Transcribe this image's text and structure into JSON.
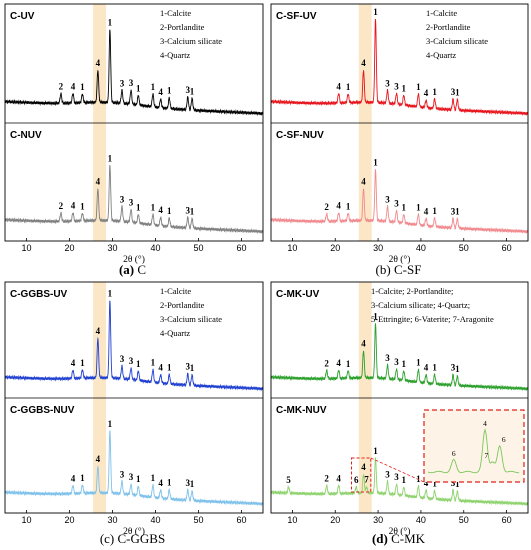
{
  "chart_data": [
    {
      "id": "a",
      "type": "line",
      "caption": {
        "letter": "(a)",
        "name": "C"
      },
      "xlim": [
        5,
        65
      ],
      "x_ticks": [
        10,
        20,
        30,
        40,
        50,
        60
      ],
      "xlabel": "2θ (°)",
      "highlight_band": [
        25.5,
        28.5
      ],
      "legend": [
        "1-Calcite",
        "2-Portlandite",
        "3-Calcium silicate",
        "4-Quartz"
      ],
      "series": [
        {
          "name": "C-UV",
          "color": "#000000",
          "peaks": [
            [
              18.0,
              2,
              9
            ],
            [
              20.8,
              4,
              9
            ],
            [
              23.0,
              1,
              8
            ],
            [
              26.6,
              4,
              30
            ],
            [
              29.4,
              1,
              68
            ],
            [
              32.2,
              3,
              12
            ],
            [
              34.3,
              3,
              13
            ],
            [
              36.0,
              1,
              9
            ],
            [
              39.4,
              1,
              12
            ],
            [
              41.2,
              4,
              8
            ],
            [
              43.2,
              1,
              10
            ],
            [
              47.5,
              3,
              12
            ],
            [
              48.5,
              1,
              11
            ]
          ]
        },
        {
          "name": "C-NUV",
          "color": "#808080",
          "peaks": [
            [
              18.0,
              2,
              8
            ],
            [
              20.8,
              4,
              8
            ],
            [
              23.0,
              1,
              7
            ],
            [
              26.6,
              4,
              30
            ],
            [
              29.4,
              1,
              52
            ],
            [
              32.2,
              3,
              14
            ],
            [
              34.3,
              3,
              12
            ],
            [
              36.0,
              1,
              8
            ],
            [
              39.4,
              1,
              10
            ],
            [
              41.2,
              4,
              8
            ],
            [
              43.2,
              1,
              8
            ],
            [
              47.5,
              3,
              10
            ],
            [
              48.5,
              1,
              9
            ]
          ]
        }
      ]
    },
    {
      "id": "b",
      "type": "line",
      "caption": {
        "letter": "(b)",
        "name": "C-SF"
      },
      "xlim": [
        5,
        65
      ],
      "x_ticks": [
        10,
        20,
        30,
        40,
        50,
        60
      ],
      "xlabel": "2θ (°)",
      "highlight_band": [
        25.5,
        28.5
      ],
      "legend": [
        "1-Calcite",
        "2-Portlandite",
        "3-Calcium silicate",
        "4-Quartz"
      ],
      "series": [
        {
          "name": "C-SF-UV",
          "color": "#e8141c",
          "peaks": [
            [
              20.8,
              4,
              9
            ],
            [
              23.0,
              1,
              8
            ],
            [
              26.6,
              4,
              30
            ],
            [
              29.4,
              1,
              78
            ],
            [
              32.2,
              3,
              12
            ],
            [
              34.3,
              3,
              10
            ],
            [
              36.0,
              1,
              9
            ],
            [
              39.4,
              1,
              12
            ],
            [
              41.2,
              4,
              7
            ],
            [
              43.2,
              1,
              9
            ],
            [
              47.5,
              3,
              10
            ],
            [
              48.5,
              1,
              10
            ]
          ]
        },
        {
          "name": "C-SF-NUV",
          "color": "#f08a8e",
          "peaks": [
            [
              18.0,
              2,
              7
            ],
            [
              20.8,
              4,
              8
            ],
            [
              23.0,
              1,
              7
            ],
            [
              26.6,
              4,
              30
            ],
            [
              29.4,
              1,
              48
            ],
            [
              32.2,
              3,
              14
            ],
            [
              34.3,
              3,
              11
            ],
            [
              36.0,
              1,
              8
            ],
            [
              39.4,
              1,
              10
            ],
            [
              41.2,
              4,
              7
            ],
            [
              43.2,
              1,
              8
            ],
            [
              47.5,
              3,
              9
            ],
            [
              48.5,
              1,
              9
            ]
          ]
        }
      ]
    },
    {
      "id": "c",
      "type": "line",
      "caption": {
        "letter": "(c)",
        "name": "C-GGBS"
      },
      "xlim": [
        5,
        65
      ],
      "x_ticks": [
        10,
        20,
        30,
        40,
        50,
        60
      ],
      "xlabel": "2θ (°)",
      "highlight_band": [
        25.5,
        28.5
      ],
      "legend": [
        "1-Calcite",
        "2-Portlandite",
        "3-Calcium silicate",
        "4-Quartz"
      ],
      "series": [
        {
          "name": "C-GGBS-UV",
          "color": "#1f3fd0",
          "peaks": [
            [
              20.8,
              4,
              8
            ],
            [
              23.0,
              1,
              8
            ],
            [
              26.6,
              4,
              38
            ],
            [
              29.4,
              1,
              74
            ],
            [
              32.2,
              3,
              12
            ],
            [
              34.3,
              3,
              11
            ],
            [
              36.0,
              1,
              9
            ],
            [
              39.4,
              1,
              12
            ],
            [
              41.2,
              4,
              8
            ],
            [
              43.2,
              1,
              9
            ],
            [
              47.5,
              3,
              11
            ],
            [
              48.5,
              1,
              10
            ]
          ]
        },
        {
          "name": "C-GGBS-NUV",
          "color": "#7ec1ea",
          "peaks": [
            [
              20.8,
              4,
              8
            ],
            [
              23.0,
              1,
              8
            ],
            [
              26.6,
              4,
              26
            ],
            [
              29.4,
              1,
              60
            ],
            [
              32.2,
              3,
              12
            ],
            [
              34.3,
              3,
              10
            ],
            [
              36.0,
              1,
              9
            ],
            [
              39.4,
              1,
              12
            ],
            [
              41.2,
              4,
              8
            ],
            [
              43.2,
              1,
              9
            ],
            [
              47.5,
              3,
              10
            ],
            [
              48.5,
              1,
              9
            ]
          ]
        }
      ]
    },
    {
      "id": "d",
      "type": "line",
      "caption": {
        "letter": "(d)",
        "name": "C-MK"
      },
      "xlim": [
        5,
        65
      ],
      "x_ticks": [
        10,
        20,
        30,
        40,
        50,
        60
      ],
      "xlabel": "2θ (°)",
      "highlight_band": [
        25.5,
        28.5
      ],
      "legend": [
        "1-Calcite; 2-Portlandite;",
        "3-Calcium silicate; 4-Quartz;",
        "5-Ettringite; 6-Vaterite; 7-Aragonite"
      ],
      "inset_labels": [
        "4",
        "6",
        "7",
        "6"
      ],
      "series": [
        {
          "name": "C-MK-UV",
          "color": "#2ca02c",
          "peaks": [
            [
              18.0,
              2,
              8
            ],
            [
              20.8,
              4,
              8
            ],
            [
              23.0,
              1,
              7
            ],
            [
              26.6,
              4,
              26
            ],
            [
              29.4,
              1,
              52
            ],
            [
              32.2,
              3,
              13
            ],
            [
              34.3,
              3,
              10
            ],
            [
              36.0,
              1,
              9
            ],
            [
              39.4,
              1,
              12
            ],
            [
              41.2,
              4,
              8
            ],
            [
              43.2,
              1,
              9
            ],
            [
              47.5,
              3,
              10
            ],
            [
              48.5,
              1,
              9
            ]
          ]
        },
        {
          "name": "C-MK-NUV",
          "color": "#8ed36e",
          "peaks": [
            [
              9.1,
              5,
              6
            ],
            [
              18.0,
              2,
              8
            ],
            [
              20.8,
              4,
              8
            ],
            [
              24.9,
              6,
              6
            ],
            [
              26.6,
              4,
              18
            ],
            [
              27.3,
              7,
              6
            ],
            [
              29.4,
              1,
              34
            ],
            [
              32.2,
              3,
              12
            ],
            [
              34.3,
              3,
              10
            ],
            [
              36.0,
              1,
              8
            ],
            [
              39.4,
              1,
              11
            ],
            [
              41.2,
              4,
              8
            ],
            [
              43.2,
              1,
              8
            ],
            [
              47.5,
              3,
              10
            ],
            [
              48.5,
              1,
              9
            ]
          ]
        }
      ]
    }
  ]
}
